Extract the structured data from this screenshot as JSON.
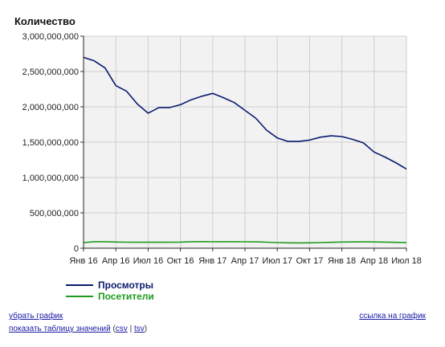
{
  "colors": {
    "views": "#0a1a6e",
    "visitors": "#1e9b1e",
    "plot_bg": "#f2f2f2",
    "grid": "#cfcfcf",
    "link": "#1a1aa6"
  },
  "chart_data": {
    "type": "line",
    "ylabel": "Количество",
    "ylim": [
      0,
      3000000000
    ],
    "yticks": [
      0,
      500000000,
      1000000000,
      1500000000,
      2000000000,
      2500000000,
      3000000000
    ],
    "ytick_labels": [
      "0",
      "500,000,000",
      "1,000,000,000",
      "1,500,000,000",
      "2,000,000,000",
      "2,500,000,000",
      "3,000,000,000"
    ],
    "xtick_labels": [
      "Янв 16",
      "Апр 16",
      "Июл 16",
      "Окт 16",
      "Янв 17",
      "Апр 17",
      "Июл 17",
      "Окт 17",
      "Янв 18",
      "Апр 18",
      "Июл 18"
    ],
    "xtick_months": [
      0,
      3,
      6,
      9,
      12,
      15,
      18,
      21,
      24,
      27,
      30
    ],
    "x": [
      "2016-01",
      "2016-02",
      "2016-03",
      "2016-04",
      "2016-05",
      "2016-06",
      "2016-07",
      "2016-08",
      "2016-09",
      "2016-10",
      "2016-11",
      "2016-12",
      "2017-01",
      "2017-02",
      "2017-03",
      "2017-04",
      "2017-05",
      "2017-06",
      "2017-07",
      "2017-08",
      "2017-09",
      "2017-10",
      "2017-11",
      "2017-12",
      "2018-01",
      "2018-02",
      "2018-03",
      "2018-04",
      "2018-05",
      "2018-06",
      "2018-07"
    ],
    "grid": true,
    "legend_position": "bottom-left",
    "series": [
      {
        "name": "Просмотры",
        "values": [
          2700000000,
          2650000000,
          2550000000,
          2300000000,
          2220000000,
          2040000000,
          1910000000,
          1990000000,
          1990000000,
          2030000000,
          2100000000,
          2150000000,
          2190000000,
          2130000000,
          2060000000,
          1950000000,
          1840000000,
          1670000000,
          1560000000,
          1510000000,
          1510000000,
          1530000000,
          1570000000,
          1590000000,
          1580000000,
          1540000000,
          1490000000,
          1360000000,
          1290000000,
          1210000000,
          1120000000
        ]
      },
      {
        "name": "Посетители",
        "values": [
          80000000,
          92000000,
          92000000,
          88000000,
          85000000,
          84000000,
          84000000,
          84000000,
          84000000,
          86000000,
          92000000,
          93000000,
          91000000,
          92000000,
          92000000,
          91000000,
          90000000,
          85000000,
          80000000,
          76000000,
          75000000,
          76000000,
          80000000,
          83000000,
          87000000,
          89000000,
          90000000,
          89000000,
          86000000,
          83000000,
          81000000
        ]
      }
    ]
  },
  "links": {
    "hide_chart": "убрать график",
    "chart_link": "ссылка на график",
    "show_table_prefix": "показать таблицу значений",
    "csv": "csv",
    "tsv": "tsv",
    "sep": "|",
    "open_paren": "(",
    "close_paren": ")"
  }
}
